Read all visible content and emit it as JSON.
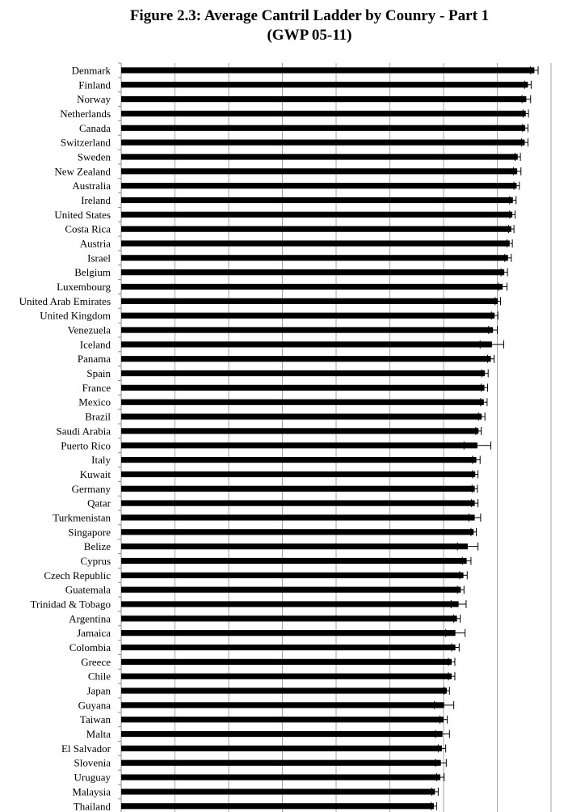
{
  "chart_data": {
    "type": "bar",
    "orientation": "horizontal",
    "title_line1": "Figure 2.3: Average Cantril Ladder by Counry - Part 1",
    "title_line2": "(GWP 05-11)",
    "xlabel": "",
    "ylabel": "",
    "xlim": [
      0,
      8
    ],
    "grid": true,
    "error_bars": true,
    "bar_color": "#000000",
    "categories": [
      "Denmark",
      "Finland",
      "Norway",
      "Netherlands",
      "Canada",
      "Switzerland",
      "Sweden",
      "New Zealand",
      "Australia",
      "Ireland",
      "United States",
      "Costa Rica",
      "Austria",
      "Israel",
      "Belgium",
      "Luxembourg",
      "United Arab Emirates",
      "United Kingdom",
      "Venezuela",
      "Iceland",
      "Panama",
      "Spain",
      "France",
      "Mexico",
      "Brazil",
      "Saudi Arabia",
      "Puerto Rico",
      "Italy",
      "Kuwait",
      "Germany",
      "Qatar",
      "Turkmenistan",
      "Singapore",
      "Belize",
      "Cyprus",
      "Czech Republic",
      "Guatemala",
      "Trinidad & Tobago",
      "Argentina",
      "Jamaica",
      "Colombia",
      "Greece",
      "Chile",
      "Japan",
      "Guyana",
      "Taiwan",
      "Malta",
      "El Salvador",
      "Slovenia",
      "Uruguay",
      "Malaysia",
      "Thailand"
    ],
    "values": [
      7.69,
      7.57,
      7.54,
      7.53,
      7.52,
      7.51,
      7.38,
      7.37,
      7.36,
      7.29,
      7.28,
      7.26,
      7.23,
      7.2,
      7.13,
      7.1,
      7.01,
      6.95,
      6.92,
      6.9,
      6.88,
      6.77,
      6.76,
      6.75,
      6.71,
      6.65,
      6.63,
      6.61,
      6.59,
      6.58,
      6.58,
      6.58,
      6.56,
      6.45,
      6.43,
      6.37,
      6.32,
      6.28,
      6.25,
      6.22,
      6.22,
      6.15,
      6.15,
      6.06,
      6.01,
      6.0,
      5.98,
      5.97,
      5.95,
      5.94,
      5.84,
      5.82
    ],
    "errors": [
      0.07,
      0.06,
      0.08,
      0.05,
      0.05,
      0.06,
      0.05,
      0.07,
      0.05,
      0.06,
      0.05,
      0.05,
      0.05,
      0.06,
      0.06,
      0.08,
      0.05,
      0.06,
      0.08,
      0.22,
      0.06,
      0.06,
      0.06,
      0.06,
      0.06,
      0.05,
      0.25,
      0.07,
      0.05,
      0.05,
      0.06,
      0.11,
      0.05,
      0.19,
      0.08,
      0.07,
      0.06,
      0.14,
      0.06,
      0.18,
      0.07,
      0.06,
      0.06,
      0.05,
      0.18,
      0.07,
      0.13,
      0.07,
      0.1,
      0.07,
      0.06,
      0.05
    ]
  }
}
